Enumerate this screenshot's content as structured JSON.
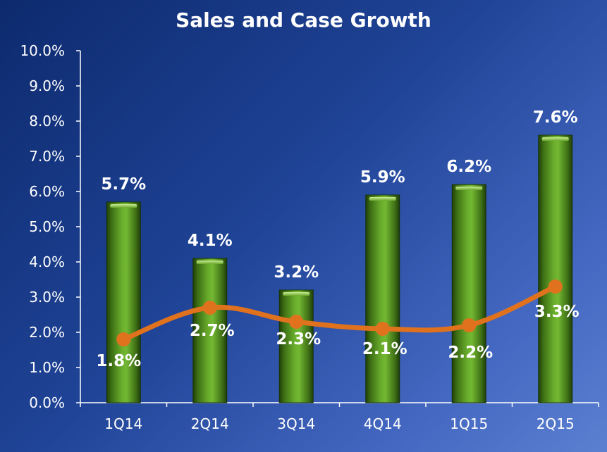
{
  "chart_data": {
    "type": "bar",
    "title": "Sales and Case Growth",
    "categories": [
      "1Q14",
      "2Q14",
      "3Q14",
      "4Q14",
      "1Q15",
      "2Q15"
    ],
    "series": [
      {
        "type": "bar",
        "values": [
          5.7,
          4.1,
          3.2,
          5.9,
          6.2,
          7.6
        ],
        "labels": [
          "5.7%",
          "4.1%",
          "3.2%",
          "5.9%",
          "6.2%",
          "7.6%"
        ],
        "color": "#5a9a24"
      },
      {
        "type": "line",
        "values": [
          1.8,
          2.7,
          2.3,
          2.1,
          2.2,
          3.3
        ],
        "labels": [
          "1.8%",
          "2.7%",
          "2.3%",
          "2.1%",
          "2.2%",
          "3.3%"
        ],
        "color": "#e0721e"
      }
    ],
    "ylim": [
      0,
      10
    ],
    "yticks": [
      "0.0%",
      "1.0%",
      "2.0%",
      "3.0%",
      "4.0%",
      "5.0%",
      "6.0%",
      "7.0%",
      "8.0%",
      "9.0%",
      "10.0%"
    ],
    "xlabel": "",
    "ylabel": "",
    "grid": false,
    "legend": "none"
  }
}
